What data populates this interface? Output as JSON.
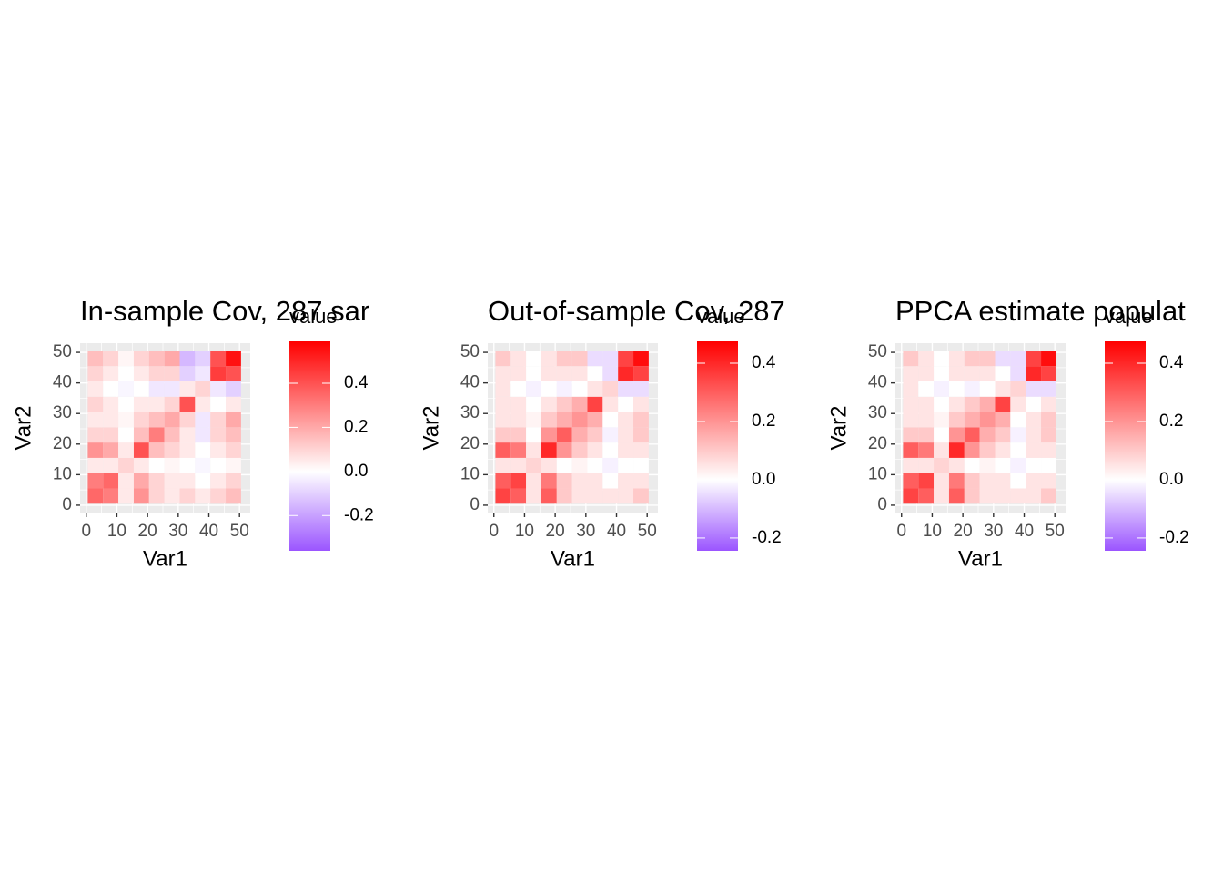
{
  "chart_data": [
    {
      "type": "heatmap",
      "title": "In-sample Cov, 287 sar",
      "x_label": "Var1",
      "y_label": "Var2",
      "x": [
        3,
        8,
        13,
        18,
        23,
        28,
        33,
        38,
        43,
        48
      ],
      "y": [
        3,
        8,
        13,
        18,
        23,
        28,
        33,
        38,
        43,
        48
      ],
      "values": [
        [
          0.35,
          0.3,
          0.05,
          0.25,
          0.1,
          0.05,
          0.1,
          0.05,
          0.1,
          0.15
        ],
        [
          0.3,
          0.35,
          0.05,
          0.2,
          0.1,
          0.05,
          0.05,
          0,
          0.05,
          0.1
        ],
        [
          0.05,
          0.05,
          0.1,
          0.05,
          0,
          0.02,
          0,
          -0.02,
          0,
          0.02
        ],
        [
          0.25,
          0.2,
          0.05,
          0.4,
          0.15,
          0.1,
          0.05,
          0,
          0.05,
          0.1
        ],
        [
          0.1,
          0.1,
          0,
          0.15,
          0.3,
          0.15,
          0.05,
          -0.05,
          0.1,
          0.15
        ],
        [
          0.05,
          0.05,
          0.02,
          0.1,
          0.15,
          0.2,
          0.1,
          -0.05,
          0.1,
          0.2
        ],
        [
          0.1,
          0.05,
          0,
          0.05,
          0.05,
          0.1,
          0.4,
          0.05,
          0,
          0.05
        ],
        [
          0.05,
          0,
          -0.02,
          0,
          -0.05,
          -0.05,
          0.05,
          0.1,
          -0.05,
          -0.1
        ],
        [
          0.1,
          0.05,
          0,
          0.05,
          0.1,
          0.1,
          -0.1,
          -0.05,
          0.45,
          0.4
        ],
        [
          0.15,
          0.1,
          0.02,
          0.1,
          0.15,
          0.2,
          -0.15,
          -0.1,
          0.4,
          0.55
        ]
      ],
      "xlim": [
        -2,
        53.5
      ],
      "ylim": [
        -2.4,
        53
      ],
      "xticks": [
        0,
        10,
        20,
        30,
        40,
        50
      ],
      "yticks": [
        0,
        10,
        20,
        30,
        40,
        50
      ],
      "legend_title": "value",
      "colorbar_lim": [
        -0.36,
        0.59
      ],
      "colorbar_ticks": [
        -0.2,
        {
          "value": 0,
          "label": "0.0"
        },
        0.2,
        0.4
      ],
      "colors": {
        "low": "#9B55FF",
        "mid": "#FFFFFF",
        "high": "#FF0000"
      }
    },
    {
      "type": "heatmap",
      "title": "Out-of-sample Cov, 287",
      "x_label": "Var1",
      "y_label": "Var2",
      "x": [
        3,
        8,
        13,
        18,
        23,
        28,
        33,
        38,
        43,
        48
      ],
      "y": [
        3,
        8,
        13,
        18,
        23,
        28,
        33,
        38,
        43,
        48
      ],
      "values": [
        [
          0.35,
          0.3,
          0.05,
          0.3,
          0.1,
          0.05,
          0.05,
          0.05,
          0.05,
          0.1
        ],
        [
          0.3,
          0.35,
          0.05,
          0.25,
          0.1,
          0.05,
          0.05,
          0,
          0.05,
          0.05
        ],
        [
          0.05,
          0.05,
          0.08,
          0.05,
          0,
          0.02,
          0,
          -0.02,
          0,
          0
        ],
        [
          0.3,
          0.25,
          0.05,
          0.4,
          0.2,
          0.1,
          0.05,
          0,
          0.05,
          0.05
        ],
        [
          0.1,
          0.1,
          0,
          0.2,
          0.3,
          0.15,
          0.1,
          -0.02,
          0.05,
          0.1
        ],
        [
          0.05,
          0.05,
          0.02,
          0.1,
          0.15,
          0.2,
          0.15,
          0,
          0.05,
          0.1
        ],
        [
          0.05,
          0.05,
          0,
          0.05,
          0.1,
          0.15,
          0.35,
          0.05,
          0,
          0.05
        ],
        [
          0.05,
          0,
          -0.02,
          0,
          -0.02,
          0,
          0.05,
          0.08,
          -0.05,
          -0.05
        ],
        [
          0.05,
          0.05,
          0,
          0.05,
          0.05,
          0.05,
          0,
          -0.05,
          0.4,
          0.35
        ],
        [
          0.1,
          0.05,
          0,
          0.05,
          0.1,
          0.1,
          -0.05,
          -0.05,
          0.35,
          0.45
        ]
      ],
      "xlim": [
        -2,
        53.5
      ],
      "ylim": [
        -2.4,
        53
      ],
      "xticks": [
        0,
        10,
        20,
        30,
        40,
        50
      ],
      "yticks": [
        0,
        10,
        20,
        30,
        40,
        50
      ],
      "legend_title": "value",
      "colorbar_lim": [
        -0.244,
        0.475
      ],
      "colorbar_ticks": [
        -0.2,
        {
          "value": 0,
          "label": "0.0"
        },
        0.2,
        0.4
      ],
      "colors": {
        "low": "#9B55FF",
        "mid": "#FFFFFF",
        "high": "#FF0000"
      }
    },
    {
      "type": "heatmap",
      "title": "PPCA estimate populat",
      "x_label": "Var1",
      "y_label": "Var2",
      "x": [
        3,
        8,
        13,
        18,
        23,
        28,
        33,
        38,
        43,
        48
      ],
      "y": [
        3,
        8,
        13,
        18,
        23,
        28,
        33,
        38,
        43,
        48
      ],
      "values": [
        [
          0.35,
          0.3,
          0.05,
          0.3,
          0.1,
          0.05,
          0.05,
          0.05,
          0.05,
          0.1
        ],
        [
          0.3,
          0.35,
          0.05,
          0.25,
          0.1,
          0.05,
          0.05,
          0,
          0.05,
          0.05
        ],
        [
          0.05,
          0.05,
          0.08,
          0.05,
          0,
          0.02,
          0,
          -0.02,
          0,
          0
        ],
        [
          0.3,
          0.25,
          0.05,
          0.4,
          0.2,
          0.1,
          0.05,
          0,
          0.05,
          0.05
        ],
        [
          0.1,
          0.1,
          0,
          0.2,
          0.3,
          0.15,
          0.1,
          -0.02,
          0.05,
          0.1
        ],
        [
          0.05,
          0.05,
          0.02,
          0.1,
          0.15,
          0.2,
          0.15,
          0,
          0.05,
          0.1
        ],
        [
          0.05,
          0.05,
          0,
          0.05,
          0.1,
          0.15,
          0.35,
          0.05,
          0,
          0.05
        ],
        [
          0.05,
          0,
          -0.02,
          0,
          -0.02,
          0,
          0.05,
          0.08,
          -0.05,
          -0.05
        ],
        [
          0.05,
          0.05,
          0,
          0.05,
          0.05,
          0.05,
          0,
          -0.05,
          0.4,
          0.35
        ],
        [
          0.1,
          0.05,
          0,
          0.05,
          0.1,
          0.1,
          -0.05,
          -0.05,
          0.35,
          0.45
        ]
      ],
      "xlim": [
        -2,
        53.5
      ],
      "ylim": [
        -2.4,
        53
      ],
      "xticks": [
        0,
        10,
        20,
        30,
        40,
        50
      ],
      "yticks": [
        0,
        10,
        20,
        30,
        40,
        50
      ],
      "legend_title": "value",
      "colorbar_lim": [
        -0.244,
        0.475
      ],
      "colorbar_ticks": [
        -0.2,
        {
          "value": 0,
          "label": "0.0"
        },
        0.2,
        0.4
      ],
      "colors": {
        "low": "#9B55FF",
        "mid": "#FFFFFF",
        "high": "#FF0000"
      }
    }
  ]
}
